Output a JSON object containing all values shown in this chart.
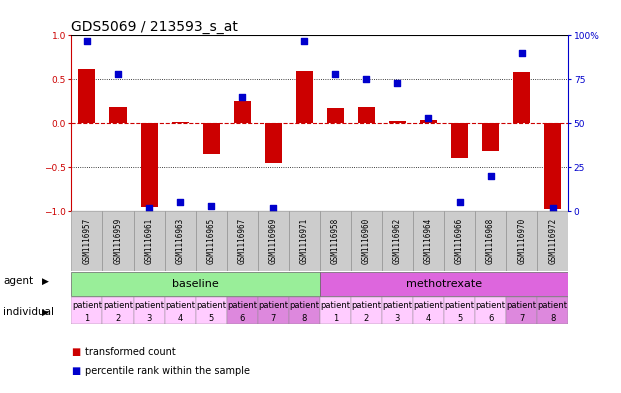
{
  "title": "GDS5069 / 213593_s_at",
  "samples": [
    "GSM1116957",
    "GSM1116959",
    "GSM1116961",
    "GSM1116963",
    "GSM1116965",
    "GSM1116967",
    "GSM1116969",
    "GSM1116971",
    "GSM1116958",
    "GSM1116960",
    "GSM1116962",
    "GSM1116964",
    "GSM1116966",
    "GSM1116968",
    "GSM1116970",
    "GSM1116972"
  ],
  "transformed_count": [
    0.62,
    0.18,
    -0.95,
    0.02,
    -0.35,
    0.25,
    -0.45,
    0.6,
    0.17,
    0.18,
    0.03,
    0.04,
    -0.4,
    -0.32,
    0.58,
    -0.98
  ],
  "percentile_rank": [
    97,
    78,
    2,
    5,
    3,
    65,
    2,
    97,
    78,
    75,
    73,
    53,
    5,
    20,
    90,
    2
  ],
  "bar_color": "#cc0000",
  "dot_color": "#0000cc",
  "agent_groups": [
    {
      "label": "baseline",
      "start": 0,
      "end": 8,
      "color": "#99ee99"
    },
    {
      "label": "methotrexate",
      "start": 8,
      "end": 16,
      "color": "#dd66dd"
    }
  ],
  "patients": [
    "patient\n1",
    "patient\n2",
    "patient\n3",
    "patient\n4",
    "patient\n5",
    "patient\n6",
    "patient\n7",
    "patient\n8",
    "patient\n1",
    "patient\n2",
    "patient\n3",
    "patient\n4",
    "patient\n5",
    "patient\n6",
    "patient\n7",
    "patient\n8"
  ],
  "patient_colors": [
    "#ffccff",
    "#ffccff",
    "#ffccff",
    "#ffccff",
    "#ffccff",
    "#dd88dd",
    "#dd88dd",
    "#dd88dd",
    "#ffccff",
    "#ffccff",
    "#ffccff",
    "#ffccff",
    "#ffccff",
    "#ffccff",
    "#dd88dd",
    "#dd88dd"
  ],
  "yticks_left": [
    -1,
    -0.5,
    0,
    0.5,
    1
  ],
  "yticks_right": [
    0,
    25,
    50,
    75,
    100
  ],
  "title_fontsize": 10,
  "tick_fontsize": 6.5,
  "label_fontsize": 7.5,
  "agent_fontsize": 8,
  "individual_fontsize": 6,
  "sample_fontsize": 5.5,
  "background_color": "#ffffff"
}
